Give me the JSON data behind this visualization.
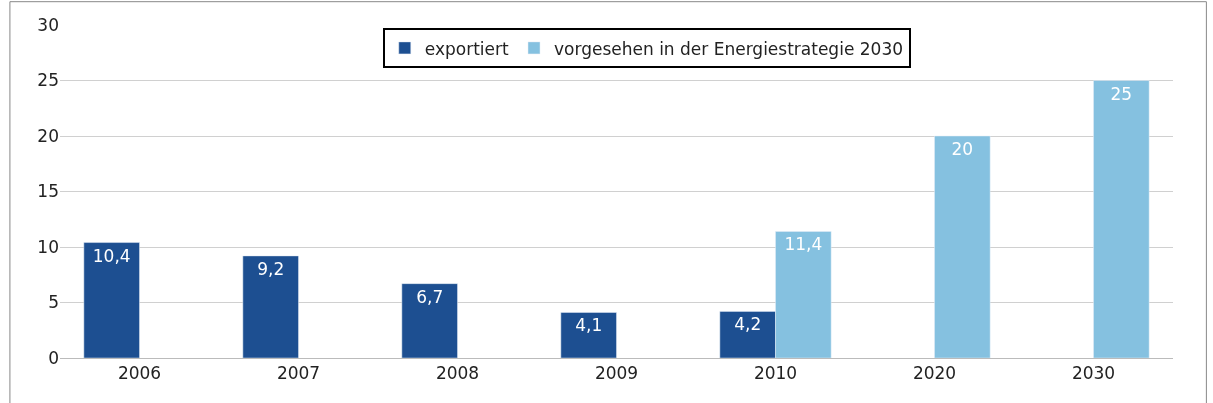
{
  "chart_data": {
    "type": "bar",
    "categories": [
      "2006",
      "2007",
      "2008",
      "2009",
      "2010",
      "2020",
      "2030"
    ],
    "series": [
      {
        "name": "exportiert",
        "color": "#1d4f91",
        "values": [
          10.4,
          9.2,
          6.7,
          4.1,
          4.2,
          null,
          null
        ],
        "value_labels": [
          "10,4",
          "9,2",
          "6,7",
          "4,1",
          "4,2",
          null,
          null
        ]
      },
      {
        "name": "vorgesehen in der Energiestrategie 2030",
        "color": "#85c1e0",
        "values": [
          null,
          null,
          null,
          null,
          11.4,
          20,
          25
        ],
        "value_labels": [
          null,
          null,
          null,
          null,
          "11,4",
          "20",
          "25"
        ]
      }
    ],
    "ylim": [
      0,
      30
    ],
    "yticks": [
      0,
      5,
      10,
      15,
      20,
      25,
      30
    ],
    "grid": "y",
    "legend": "top"
  }
}
